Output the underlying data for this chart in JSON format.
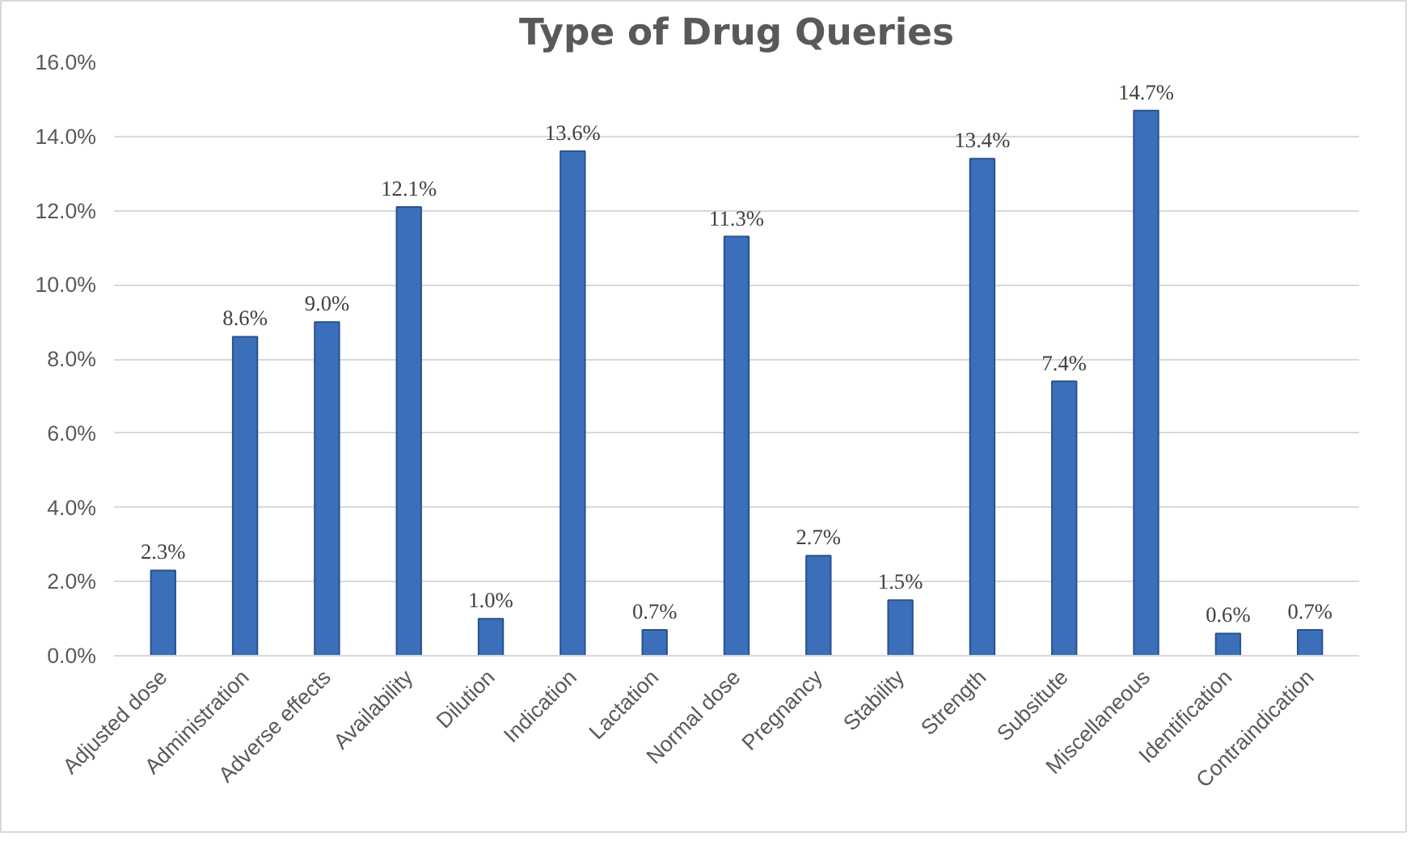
{
  "chart_data": {
    "type": "bar",
    "title": "Type of Drug Queries",
    "categories": [
      "Adjusted dose",
      "Administration",
      "Adverse effects",
      "Availability",
      "Dilution",
      "Indication",
      "Lactation",
      "Normal dose",
      "Pregnancy",
      "Stability",
      "Strength",
      "Subsitute",
      "Miscellaneous",
      "Identification",
      "Contraindication"
    ],
    "values": [
      2.3,
      8.6,
      9.0,
      12.1,
      1.0,
      13.6,
      0.7,
      11.3,
      2.7,
      1.5,
      13.4,
      7.4,
      14.7,
      0.6,
      0.7
    ],
    "value_labels": [
      "2.3%",
      "8.6%",
      "9.0%",
      "12.1%",
      "1.0%",
      "13.6%",
      "0.7%",
      "11.3%",
      "2.7%",
      "1.5%",
      "13.4%",
      "7.4%",
      "14.7%",
      "0.6%",
      "0.7%"
    ],
    "color": "#3b6fba",
    "ylim": [
      0,
      16
    ],
    "yticks": [
      {
        "value": 0,
        "label": "0.0%"
      },
      {
        "value": 2,
        "label": "2.0%"
      },
      {
        "value": 4,
        "label": "4.0%"
      },
      {
        "value": 6,
        "label": "6.0%"
      },
      {
        "value": 8,
        "label": "8.0%"
      },
      {
        "value": 10,
        "label": "10.0%"
      },
      {
        "value": 12,
        "label": "12.0%"
      },
      {
        "value": 14,
        "label": "14.0%"
      },
      {
        "value": 16,
        "label": "16.0%"
      }
    ],
    "grid": "y"
  }
}
